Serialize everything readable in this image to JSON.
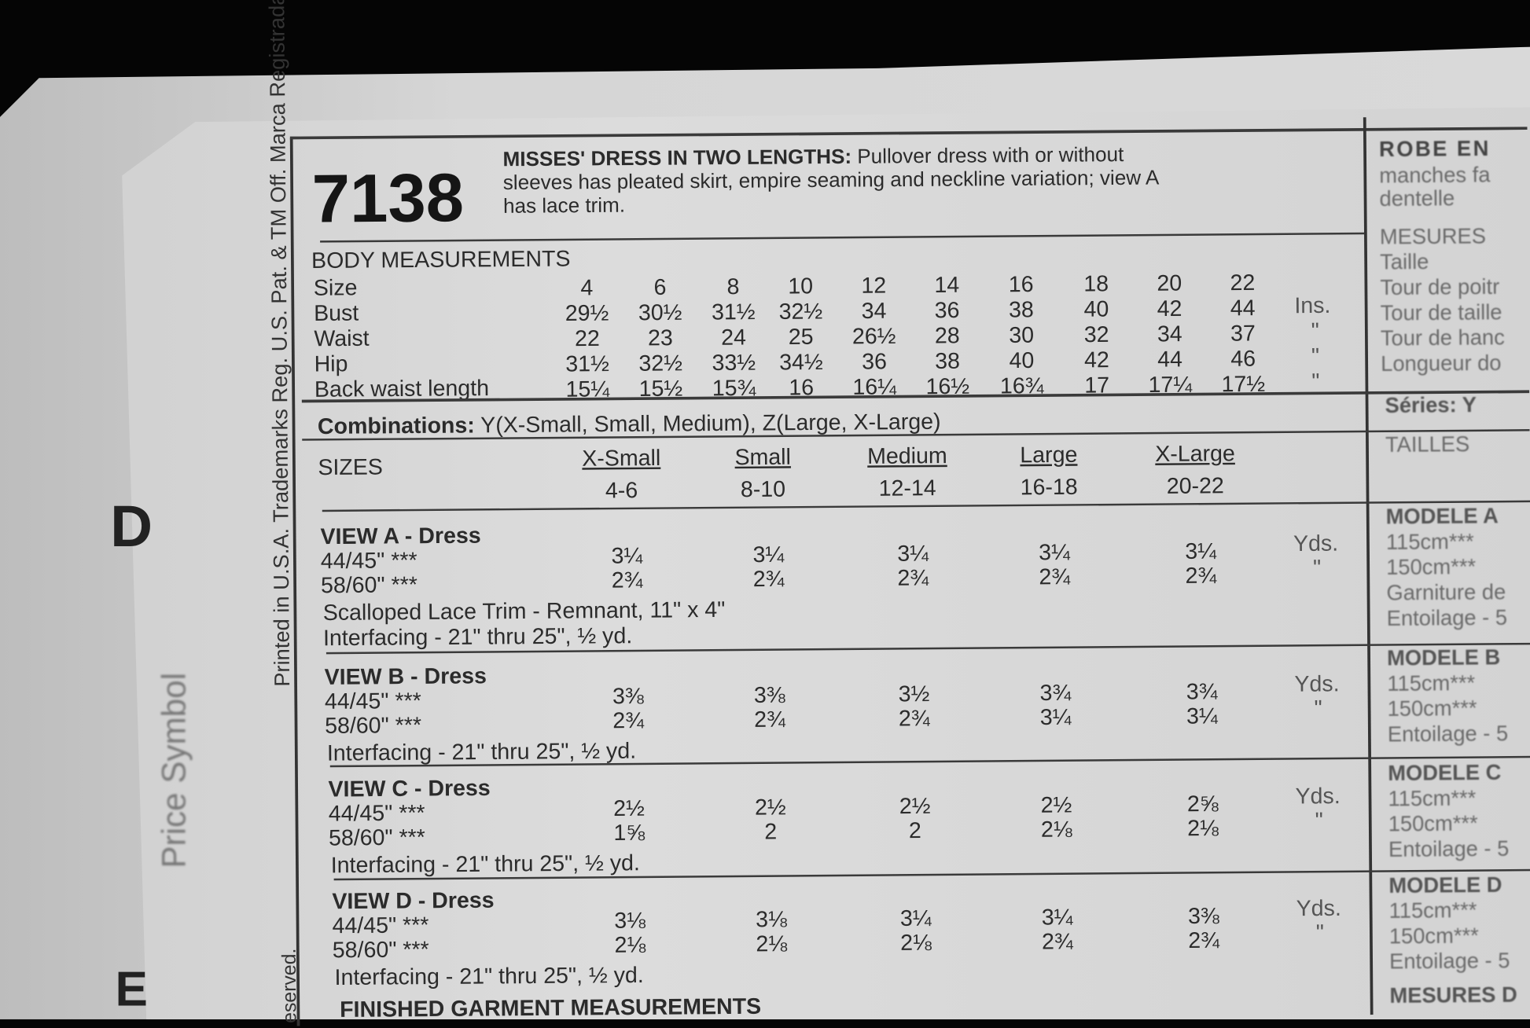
{
  "pattern": {
    "number": "7138",
    "title": "MISSES' DRESS IN TWO LENGTHS:",
    "description_lines": [
      "Pullover dress with or without",
      "sleeves has pleated skirt, empire seaming and neckline variation; view A",
      "has lace trim."
    ]
  },
  "body_measurements": {
    "heading": "BODY MEASUREMENTS",
    "unit": "Ins.",
    "ditto": "\"",
    "rows": [
      {
        "label": "Size",
        "values": [
          "4",
          "6",
          "8",
          "10",
          "12",
          "14",
          "16",
          "18",
          "20",
          "22"
        ]
      },
      {
        "label": "Bust",
        "values": [
          "29½",
          "30½",
          "31½",
          "32½",
          "34",
          "36",
          "38",
          "40",
          "42",
          "44"
        ]
      },
      {
        "label": "Waist",
        "values": [
          "22",
          "23",
          "24",
          "25",
          "26½",
          "28",
          "30",
          "32",
          "34",
          "37"
        ]
      },
      {
        "label": "Hip",
        "values": [
          "31½",
          "32½",
          "33½",
          "34½",
          "36",
          "38",
          "40",
          "42",
          "44",
          "46"
        ]
      },
      {
        "label": "Back waist length",
        "values": [
          "15¼",
          "15½",
          "15¾",
          "16",
          "16¼",
          "16½",
          "16¾",
          "17",
          "17¼",
          "17½"
        ]
      }
    ]
  },
  "combinations": {
    "label": "Combinations:",
    "text": "Y(X-Small, Small, Medium), Z(Large, X-Large)"
  },
  "sizes": {
    "label": "SIZES",
    "columns": [
      {
        "name": "X-Small",
        "range": "4-6"
      },
      {
        "name": "Small",
        "range": "8-10"
      },
      {
        "name": "Medium",
        "range": "12-14"
      },
      {
        "name": "Large",
        "range": "16-18"
      },
      {
        "name": "X-Large",
        "range": "20-22"
      }
    ]
  },
  "views": [
    {
      "title": "VIEW A - Dress",
      "unit": "Yds.",
      "ditto": "\"",
      "rows": [
        {
          "label": "44/45\" ***",
          "values": [
            "3¼",
            "3¼",
            "3¼",
            "3¼",
            "3¼"
          ]
        },
        {
          "label": "58/60\" ***",
          "values": [
            "2¾",
            "2¾",
            "2¾",
            "2¾",
            "2¾"
          ]
        }
      ],
      "notes": [
        "Scalloped Lace Trim - Remnant, 11\" x 4\"",
        "Interfacing - 21\" thru 25\", ½ yd."
      ]
    },
    {
      "title": "VIEW B - Dress",
      "unit": "Yds.",
      "ditto": "\"",
      "rows": [
        {
          "label": "44/45\" ***",
          "values": [
            "3⅜",
            "3⅜",
            "3½",
            "3¾",
            "3¾"
          ]
        },
        {
          "label": "58/60\" ***",
          "values": [
            "2¾",
            "2¾",
            "2¾",
            "3¼",
            "3¼"
          ]
        }
      ],
      "notes": [
        "Interfacing - 21\" thru 25\", ½ yd."
      ]
    },
    {
      "title": "VIEW C - Dress",
      "unit": "Yds.",
      "ditto": "\"",
      "rows": [
        {
          "label": "44/45\" ***",
          "values": [
            "2½",
            "2½",
            "2½",
            "2½",
            "2⅝"
          ]
        },
        {
          "label": "58/60\" ***",
          "values": [
            "1⅝",
            "2",
            "2",
            "2⅛",
            "2⅛"
          ]
        }
      ],
      "notes": [
        "Interfacing - 21\" thru 25\", ½ yd."
      ]
    },
    {
      "title": "VIEW D - Dress",
      "unit": "Yds.",
      "ditto": "\"",
      "rows": [
        {
          "label": "44/45\" ***",
          "values": [
            "3⅛",
            "3⅛",
            "3¼",
            "3¼",
            "3⅜"
          ]
        },
        {
          "label": "58/60\" ***",
          "values": [
            "2⅛",
            "2⅛",
            "2⅛",
            "2¾",
            "2¾"
          ]
        }
      ],
      "notes": [
        "Interfacing - 21\" thru 25\", ½ yd."
      ]
    }
  ],
  "finished_heading": "FINISHED GARMENT MEASUREMENTS",
  "french": {
    "title": "ROBE EN",
    "desc_lines": [
      "manches fa",
      "dentelle"
    ],
    "measures": [
      "MESURES",
      "Taille",
      "Tour de poitr",
      "Tour de taille",
      "Tour de hanc",
      "Longueur do"
    ],
    "series": "Séries:   Y",
    "tailles": "TAILLES",
    "modeles": [
      {
        "title": "MODELE A",
        "lines": [
          "115cm***",
          "150cm***",
          "Garniture de",
          "Entoilage - 5"
        ]
      },
      {
        "title": "MODELE B",
        "lines": [
          "115cm***",
          "150cm***",
          "Entoilage - 5"
        ]
      },
      {
        "title": "MODELE C",
        "lines": [
          "115cm***",
          "150cm***",
          "Entoilage - 5"
        ]
      },
      {
        "title": "MODELE D",
        "lines": [
          "115cm***",
          "150cm***",
          "Entoilage - 5"
        ]
      }
    ],
    "finished": "MESURES D"
  },
  "side_text": {
    "legal": "Printed in U.S.A.  Trademarks Reg. U.S. Pat. & TM Off. Marca Registrada",
    "reserved": "eserved.",
    "price_symbol": "Price Symbol"
  }
}
